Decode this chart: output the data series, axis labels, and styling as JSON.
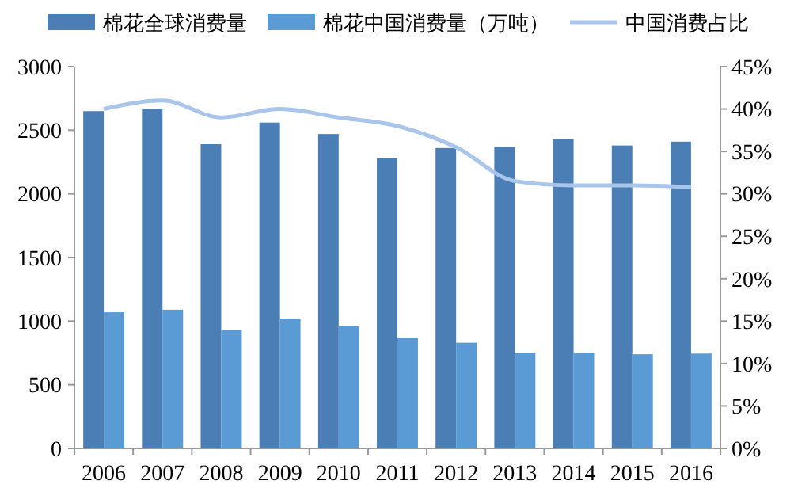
{
  "chart_data": {
    "type": "bar",
    "categories": [
      "2006",
      "2007",
      "2008",
      "2009",
      "2010",
      "2011",
      "2012",
      "2013",
      "2014",
      "2015",
      "2016"
    ],
    "series": [
      {
        "name": "棉花全球消费量",
        "color": "#4a7eb4",
        "values": [
          2650,
          2670,
          2390,
          2560,
          2470,
          2280,
          2360,
          2370,
          2430,
          2380,
          2410
        ]
      },
      {
        "name": "棉花中国消费量（万吨）",
        "color": "#5b9bd5",
        "values": [
          1070,
          1090,
          930,
          1020,
          960,
          870,
          830,
          750,
          750,
          740,
          745
        ]
      },
      {
        "name": "中国消费占比",
        "type": "line",
        "axis": "y2",
        "color": "#a9c5ea",
        "values": [
          40,
          41,
          39,
          40,
          39,
          38,
          35.5,
          31.5,
          31,
          31,
          30.8
        ]
      }
    ],
    "ylim": [
      0,
      3000
    ],
    "yticks": [
      0,
      500,
      1000,
      1500,
      2000,
      2500,
      3000
    ],
    "y2lim": [
      0,
      45
    ],
    "y2ticks": [
      {
        "value": 0,
        "label": "0%"
      },
      {
        "value": 5,
        "label": "5%"
      },
      {
        "value": 10,
        "label": "10%"
      },
      {
        "value": 15,
        "label": "15%"
      },
      {
        "value": 20,
        "label": "20%"
      },
      {
        "value": 25,
        "label": "25%"
      },
      {
        "value": 30,
        "label": "30%"
      },
      {
        "value": 35,
        "label": "35%"
      },
      {
        "value": 40,
        "label": "40%"
      },
      {
        "value": 45,
        "label": "45%"
      }
    ],
    "legend": "top",
    "marker": "none"
  }
}
